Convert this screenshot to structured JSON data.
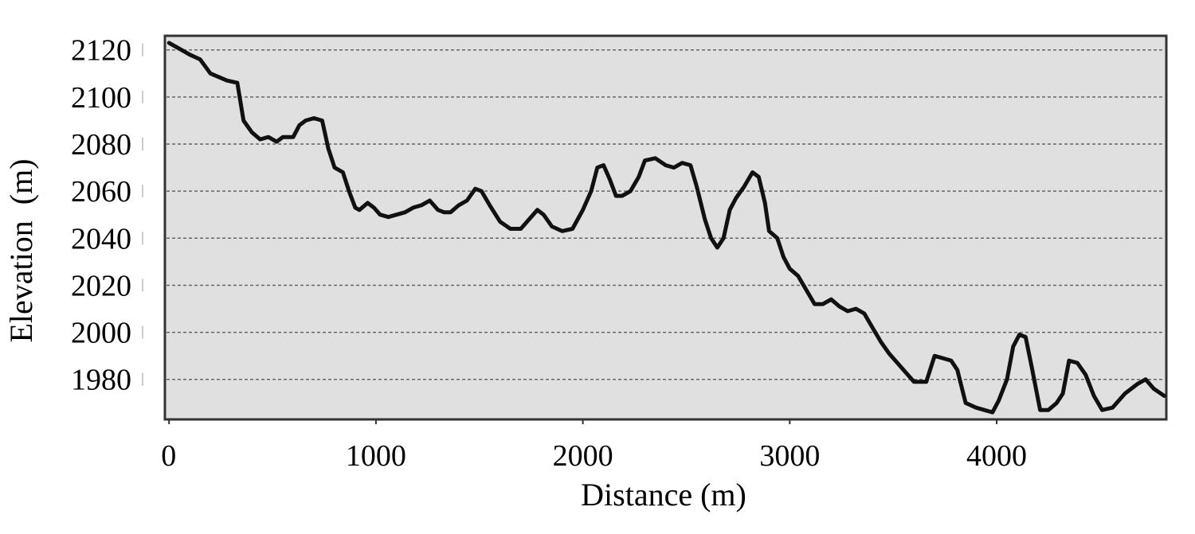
{
  "chart_data": {
    "type": "line",
    "title": "",
    "xlabel": "Distance (m)",
    "ylabel": "Elevation  (m)",
    "xlim": [
      -20,
      4820
    ],
    "ylim": [
      1963,
      2126
    ],
    "x_ticks": [
      0,
      1000,
      2000,
      3000,
      4000
    ],
    "x_tick_labels": [
      "0",
      "1000",
      "2000",
      "3000",
      "4000"
    ],
    "y_ticks": [
      1980,
      2000,
      2020,
      2040,
      2060,
      2080,
      2100,
      2120
    ],
    "y_tick_labels": [
      "1980",
      "2000",
      "2020",
      "2040",
      "2060",
      "2080",
      "2100",
      "2120"
    ],
    "grid": "horizontal dashed",
    "legend": "none",
    "colors": {
      "plot_background": "#e0e0e0",
      "line": "#111111",
      "grid": "#666666",
      "frame": "#333333"
    },
    "series": [
      {
        "x": [
          0,
          60,
          100,
          150,
          200,
          280,
          330,
          360,
          400,
          440,
          480,
          520,
          550,
          600,
          630,
          660,
          700,
          740,
          770,
          800,
          840,
          870,
          900,
          920,
          960,
          990,
          1020,
          1060,
          1100,
          1140,
          1180,
          1220,
          1260,
          1300,
          1330,
          1360,
          1400,
          1440,
          1480,
          1510,
          1550,
          1600,
          1650,
          1700,
          1750,
          1780,
          1810,
          1850,
          1900,
          1950,
          2000,
          2040,
          2070,
          2100,
          2130,
          2160,
          2190,
          2230,
          2270,
          2300,
          2350,
          2400,
          2440,
          2480,
          2520,
          2550,
          2590,
          2620,
          2650,
          2680,
          2710,
          2740,
          2780,
          2820,
          2850,
          2880,
          2900,
          2940,
          2970,
          3000,
          3040,
          3080,
          3120,
          3160,
          3200,
          3240,
          3280,
          3320,
          3360,
          3400,
          3440,
          3480,
          3520,
          3560,
          3600,
          3660,
          3700,
          3740,
          3780,
          3810,
          3850,
          3900,
          3940,
          3980,
          4010,
          4050,
          4080,
          4110,
          4140,
          4170,
          4210,
          4250,
          4290,
          4320,
          4350,
          4390,
          4430,
          4470,
          4510,
          4560,
          4620,
          4680,
          4720,
          4760,
          4810
        ],
        "y": [
          2123,
          2120,
          2118,
          2116,
          2110,
          2107,
          2106,
          2090,
          2085,
          2082,
          2083,
          2081,
          2083,
          2083,
          2088,
          2090,
          2091,
          2090,
          2078,
          2070,
          2068,
          2060,
          2053,
          2052,
          2055,
          2053,
          2050,
          2049,
          2050,
          2051,
          2053,
          2054,
          2056,
          2052,
          2051,
          2051,
          2054,
          2056,
          2061,
          2060,
          2054,
          2047,
          2044,
          2044,
          2049,
          2052,
          2050,
          2045,
          2043,
          2044,
          2052,
          2060,
          2070,
          2071,
          2065,
          2058,
          2058,
          2060,
          2066,
          2073,
          2074,
          2071,
          2070,
          2072,
          2071,
          2062,
          2048,
          2040,
          2036,
          2040,
          2052,
          2057,
          2062,
          2068,
          2066,
          2055,
          2043,
          2040,
          2032,
          2027,
          2024,
          2018,
          2012,
          2012,
          2014,
          2011,
          2009,
          2010,
          2008,
          2002,
          1996,
          1991,
          1987,
          1983,
          1979,
          1979,
          1990,
          1989,
          1988,
          1984,
          1970,
          1968,
          1967,
          1966,
          1971,
          1980,
          1994,
          1999,
          1998,
          1985,
          1967,
          1967,
          1970,
          1974,
          1988,
          1987,
          1982,
          1973,
          1967,
          1968,
          1974,
          1978,
          1980,
          1976,
          1973
        ]
      }
    ]
  }
}
